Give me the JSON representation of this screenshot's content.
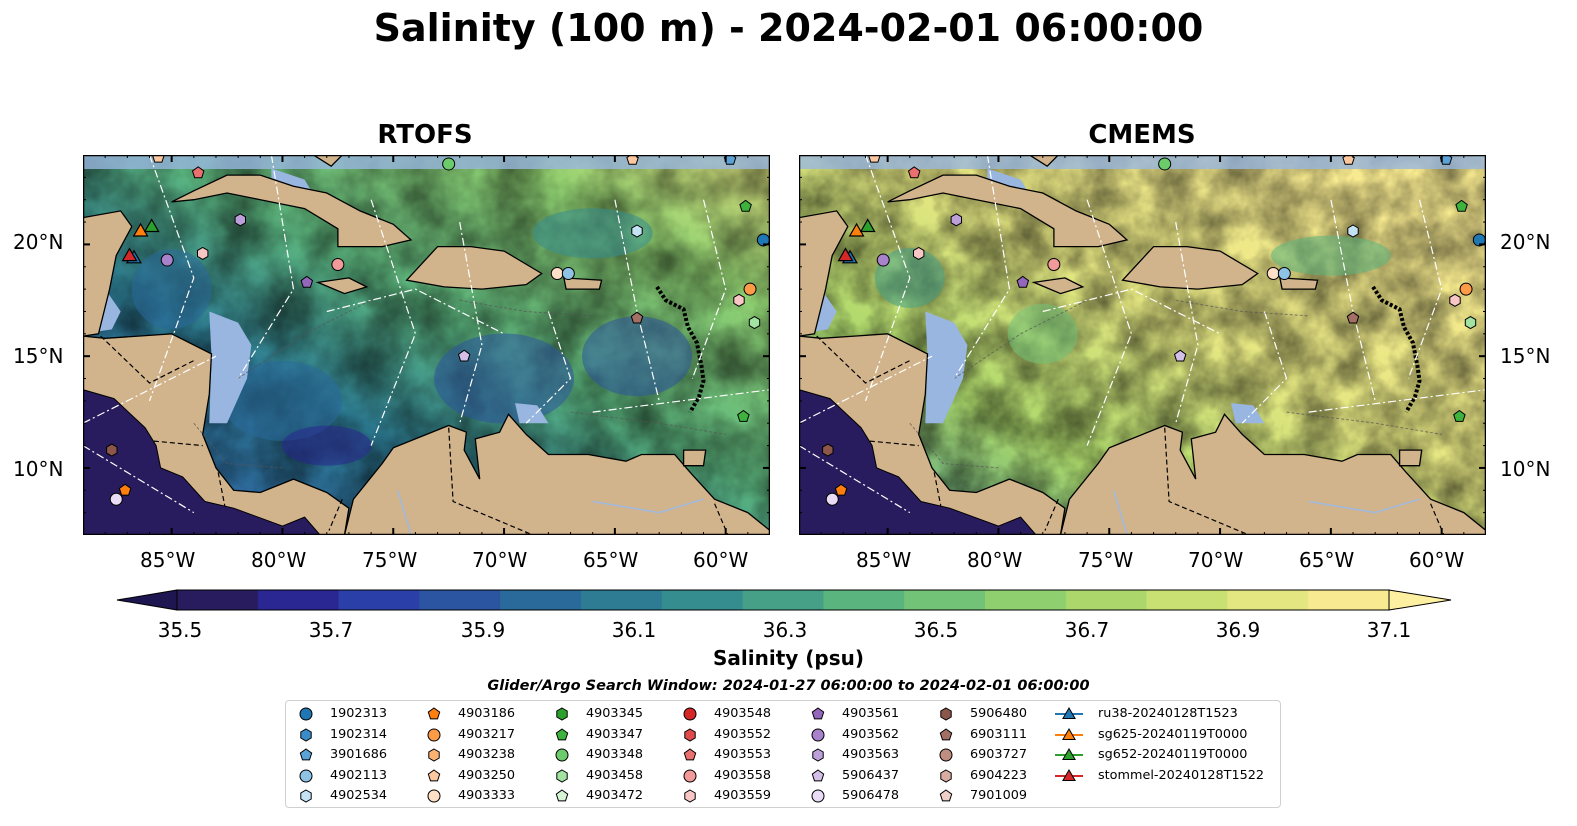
{
  "title": "Salinity (100 m) - 2024-02-01 06:00:00",
  "panels": [
    {
      "title": "RTOFS"
    },
    {
      "title": "CMEMS"
    }
  ],
  "map": {
    "lon_range": [
      -89,
      -58
    ],
    "lat_range": [
      7,
      24
    ],
    "lat_ticks": [
      "20°N",
      "15°N",
      "10°N"
    ],
    "lon_ticks": [
      "85°W",
      "80°W",
      "75°W",
      "70°W",
      "65°W",
      "60°W"
    ],
    "land_color": "#d2b48c",
    "shallow_color": "#98b6e0",
    "eez_line_color": "#ffffff"
  },
  "colorbar": {
    "label": "Salinity (psu)",
    "ticks": [
      "35.5",
      "35.7",
      "35.9",
      "36.1",
      "36.3",
      "36.5",
      "36.7",
      "36.9",
      "37.1"
    ],
    "min": 35.4,
    "max": 37.2,
    "colors": [
      "#281c5e",
      "#2a2692",
      "#2a3fa8",
      "#2b55a0",
      "#2a6a9a",
      "#2d7c93",
      "#358d8f",
      "#45a087",
      "#5ab47e",
      "#72c378",
      "#8fcf70",
      "#acd86b",
      "#c9e073",
      "#e4e681",
      "#f8ea90"
    ]
  },
  "legend": {
    "title": "Glider/Argo Search Window: 2024-01-27 06:00:00 to 2024-02-01 06:00:00",
    "columns": [
      [
        {
          "label": "1902313",
          "color": "#1f77b4",
          "marker": "circle"
        },
        {
          "label": "1902314",
          "color": "#3a8cc9",
          "marker": "hexagon"
        },
        {
          "label": "3901686",
          "color": "#5ba3d6",
          "marker": "pentagon"
        },
        {
          "label": "4902113",
          "color": "#8fc3e6",
          "marker": "circle"
        },
        {
          "label": "4902534",
          "color": "#c5e2f5",
          "marker": "hexagon"
        }
      ],
      [
        {
          "label": "4903186",
          "color": "#ff7f0e",
          "marker": "pentagon"
        },
        {
          "label": "4903217",
          "color": "#fd9b46",
          "marker": "circle"
        },
        {
          "label": "4903238",
          "color": "#fdb173",
          "marker": "hexagon"
        },
        {
          "label": "4903250",
          "color": "#fdc89f",
          "marker": "pentagon"
        },
        {
          "label": "4903333",
          "color": "#fee0c6",
          "marker": "circle"
        }
      ],
      [
        {
          "label": "4903345",
          "color": "#2ca02c",
          "marker": "hexagon"
        },
        {
          "label": "4903347",
          "color": "#3db33d",
          "marker": "pentagon"
        },
        {
          "label": "4903348",
          "color": "#6ccc6c",
          "marker": "circle"
        },
        {
          "label": "4903458",
          "color": "#a2e3a2",
          "marker": "hexagon"
        },
        {
          "label": "4903472",
          "color": "#d5f5d5",
          "marker": "pentagon"
        }
      ],
      [
        {
          "label": "4903548",
          "color": "#d62728",
          "marker": "circle"
        },
        {
          "label": "4903552",
          "color": "#e04a4a",
          "marker": "hexagon"
        },
        {
          "label": "4903553",
          "color": "#ea6f6f",
          "marker": "pentagon"
        },
        {
          "label": "4903558",
          "color": "#f29a9a",
          "marker": "circle"
        },
        {
          "label": "4903559",
          "color": "#f9c6c6",
          "marker": "hexagon"
        }
      ],
      [
        {
          "label": "4903561",
          "color": "#9467bd",
          "marker": "pentagon"
        },
        {
          "label": "4903562",
          "color": "#a982cc",
          "marker": "circle"
        },
        {
          "label": "4903563",
          "color": "#bd9fda",
          "marker": "hexagon"
        },
        {
          "label": "5906437",
          "color": "#d4bfe8",
          "marker": "pentagon"
        },
        {
          "label": "5906478",
          "color": "#eadcf5",
          "marker": "circle"
        }
      ],
      [
        {
          "label": "5906480",
          "color": "#8c564b",
          "marker": "hexagon"
        },
        {
          "label": "6903111",
          "color": "#a47065",
          "marker": "pentagon"
        },
        {
          "label": "6903727",
          "color": "#c08d80",
          "marker": "circle"
        },
        {
          "label": "6904223",
          "color": "#d9aca2",
          "marker": "hexagon"
        },
        {
          "label": "7901009",
          "color": "#f0cfc8",
          "marker": "pentagon"
        }
      ],
      [
        {
          "label": "ru38-20240128T1523",
          "color": "#1f77b4",
          "marker": "triangle-line"
        },
        {
          "label": "sg625-20240119T0000",
          "color": "#ff7f0e",
          "marker": "triangle-line"
        },
        {
          "label": "sg652-20240119T0000",
          "color": "#2ca02c",
          "marker": "triangle-line"
        },
        {
          "label": "stommel-20240128T1522",
          "color": "#d62728",
          "marker": "triangle-line"
        }
      ]
    ]
  },
  "platform_positions": [
    {
      "id": "4903250",
      "lon": -85.6,
      "lat": 23.9
    },
    {
      "id": "4903553",
      "lon": -83.8,
      "lat": 23.2
    },
    {
      "id": "4903348",
      "lon": -72.5,
      "lat": 23.6
    },
    {
      "id": "4903250",
      "lon": -64.2,
      "lat": 23.8
    },
    {
      "id": "3901686",
      "lon": -59.8,
      "lat": 23.8
    },
    {
      "id": "4903347",
      "lon": -59.1,
      "lat": 21.7
    },
    {
      "id": "1902313",
      "lon": -58.3,
      "lat": 20.2
    },
    {
      "id": "4903563",
      "lon": -81.9,
      "lat": 21.1
    },
    {
      "id": "4903559",
      "lon": -83.6,
      "lat": 19.6
    },
    {
      "id": "4903562",
      "lon": -85.2,
      "lat": 19.3
    },
    {
      "id": "4903558",
      "lon": -77.5,
      "lat": 19.1
    },
    {
      "id": "4903561",
      "lon": -78.9,
      "lat": 18.3
    },
    {
      "id": "4902534",
      "lon": -64.0,
      "lat": 20.6
    },
    {
      "id": "4903333",
      "lon": -67.6,
      "lat": 18.7
    },
    {
      "id": "4902113",
      "lon": -67.1,
      "lat": 18.7
    },
    {
      "id": "4903559",
      "lon": -59.4,
      "lat": 17.5
    },
    {
      "id": "4903217",
      "lon": -58.9,
      "lat": 18.0
    },
    {
      "id": "4903458",
      "lon": -58.7,
      "lat": 16.5
    },
    {
      "id": "6903111",
      "lon": -64.0,
      "lat": 16.7
    },
    {
      "id": "5906437",
      "lon": -71.8,
      "lat": 15.0
    },
    {
      "id": "4903347",
      "lon": -59.2,
      "lat": 12.3
    },
    {
      "id": "5906480",
      "lon": -87.7,
      "lat": 10.8
    },
    {
      "id": "4903186",
      "lon": -87.1,
      "lat": 9.0
    },
    {
      "id": "5906478",
      "lon": -87.5,
      "lat": 8.6
    }
  ],
  "glider_positions": [
    {
      "id": "ru38-20240128T1523",
      "lon": -86.7,
      "lat": 19.4
    },
    {
      "id": "sg625-20240119T0000",
      "lon": -86.4,
      "lat": 20.6
    },
    {
      "id": "sg652-20240119T0000",
      "lon": -85.9,
      "lat": 20.8
    },
    {
      "id": "stommel-20240128T1522",
      "lon": -86.9,
      "lat": 19.5
    }
  ]
}
